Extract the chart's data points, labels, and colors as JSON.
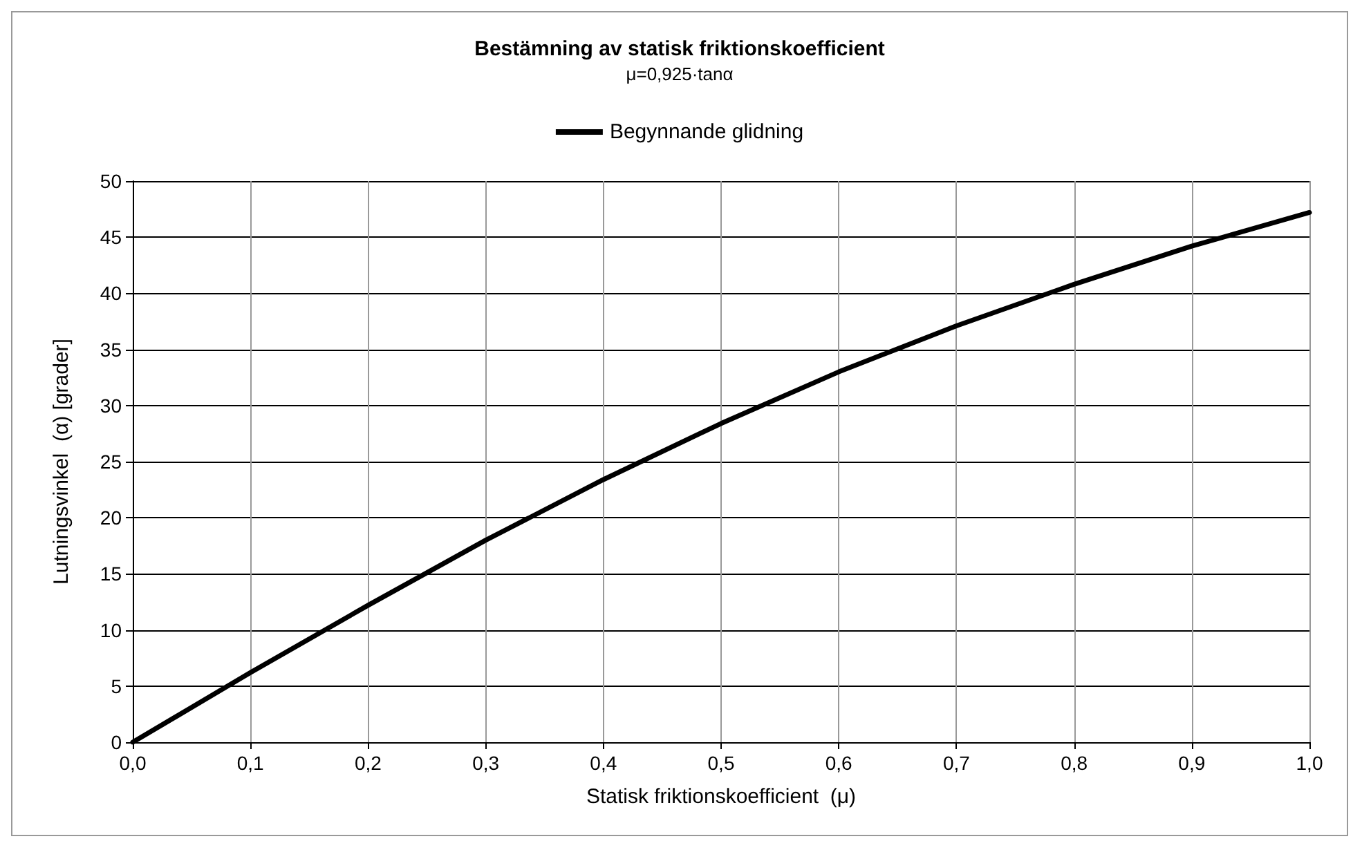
{
  "chart_data": {
    "type": "line",
    "title": "Bestämning av statisk friktionskoefficient",
    "subtitle": "μ=0,925·tanα",
    "xlabel": "Statisk friktionskoefficient  (μ)",
    "ylabel": "Lutningsvinkel  (α) [grader]",
    "x": [
      0,
      0.1,
      0.2,
      0.3,
      0.4,
      0.5,
      0.6,
      0.7,
      0.8,
      0.9,
      1.0
    ],
    "series": [
      {
        "name": "Begynnande glidning",
        "color": "#000000",
        "values": [
          0,
          6.2,
          12.2,
          18,
          23.4,
          28.4,
          33,
          37.1,
          40.8,
          44.2,
          47.2
        ]
      }
    ],
    "xlim": [
      0,
      1
    ],
    "xticks": [
      {
        "value": 0,
        "label": "0,0"
      },
      {
        "value": 0.1,
        "label": "0,1"
      },
      {
        "value": 0.2,
        "label": "0,2"
      },
      {
        "value": 0.3,
        "label": "0,3"
      },
      {
        "value": 0.4,
        "label": "0,4"
      },
      {
        "value": 0.5,
        "label": "0,5"
      },
      {
        "value": 0.6,
        "label": "0,6"
      },
      {
        "value": 0.7,
        "label": "0,7"
      },
      {
        "value": 0.8,
        "label": "0,8"
      },
      {
        "value": 0.9,
        "label": "0,9"
      },
      {
        "value": 1,
        "label": "1,0"
      }
    ],
    "ylim": [
      0,
      50
    ],
    "yticks": [
      0,
      5,
      10,
      15,
      20,
      25,
      30,
      35,
      40,
      45,
      50
    ],
    "grid": true,
    "legend": "top",
    "marker": "none",
    "line_style": "solid"
  }
}
